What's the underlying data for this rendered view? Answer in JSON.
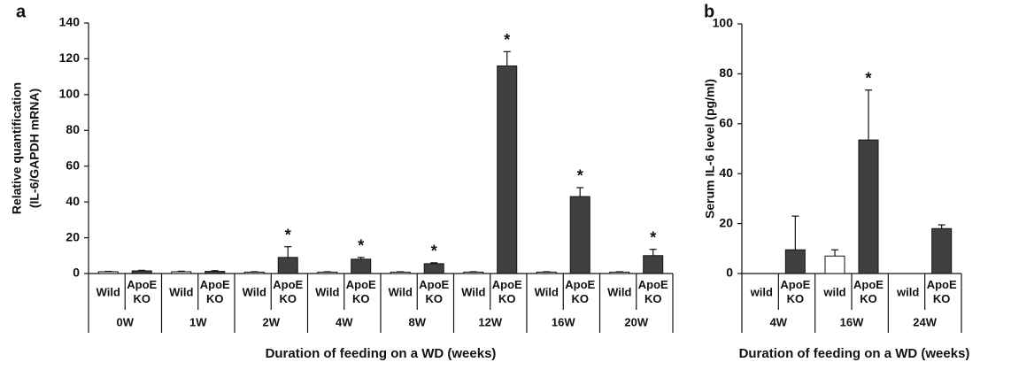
{
  "chart_data": [
    {
      "type": "bar",
      "panel_label": "a",
      "y_label": [
        "Relative quantification",
        "(IL-6/GAPDH mRNA)"
      ],
      "x_label": "Duration of feeding on a WD (weeks)",
      "groups": [
        "0W",
        "1W",
        "2W",
        "4W",
        "8W",
        "12W",
        "16W",
        "20W"
      ],
      "series": [
        {
          "name": "Wild",
          "color": "#ffffff",
          "values": [
            1,
            1,
            0.8,
            0.8,
            0.8,
            0.8,
            0.8,
            0.8
          ],
          "errors": [
            0.2,
            0.3,
            0.2,
            0.2,
            0.2,
            0.2,
            0.2,
            0.2
          ]
        },
        {
          "name": "ApoE KO",
          "color": "#404040",
          "values": [
            1.5,
            1.2,
            9,
            8,
            5.5,
            116,
            43,
            10
          ],
          "errors": [
            0.3,
            0.4,
            6,
            1,
            0.5,
            8,
            5,
            3.5
          ]
        }
      ],
      "annotations": [
        {
          "text": "*",
          "group": "2W"
        },
        {
          "text": "*",
          "group": "4W"
        },
        {
          "text": "*",
          "group": "8W"
        },
        {
          "text": "*",
          "group": "12W"
        },
        {
          "text": "*",
          "group": "16W"
        },
        {
          "text": "*",
          "group": "20W"
        }
      ],
      "ylim": [
        0,
        140
      ],
      "yticks": [
        0,
        20,
        40,
        60,
        80,
        100,
        120,
        140
      ]
    },
    {
      "type": "bar",
      "panel_label": "b",
      "y_label": [
        "Serum IL-6 level (pg/ml)"
      ],
      "x_label": "Duration of feeding on a WD (weeks)",
      "groups": [
        "4W",
        "16W",
        "24W"
      ],
      "series": [
        {
          "name": "wild",
          "color": "#ffffff",
          "values": [
            null,
            7,
            null
          ],
          "errors": [
            null,
            2.5,
            null
          ]
        },
        {
          "name": "ApoE KO",
          "color": "#404040",
          "values": [
            9.5,
            53.5,
            18
          ],
          "errors": [
            13.5,
            20,
            1.5
          ]
        }
      ],
      "annotations": [
        {
          "text": "*",
          "group": "16W"
        }
      ],
      "ylim": [
        0,
        100
      ],
      "yticks": [
        0,
        20,
        40,
        60,
        80,
        100
      ]
    }
  ]
}
